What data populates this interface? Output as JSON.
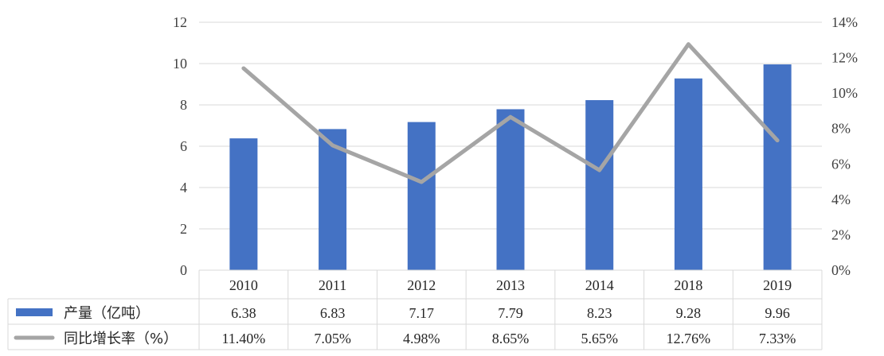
{
  "chart_data": {
    "type": "bar",
    "categories": [
      "2010",
      "2011",
      "2012",
      "2013",
      "2014",
      "2018",
      "2019"
    ],
    "series": [
      {
        "name": "产量（亿吨）",
        "type": "bar",
        "axis": "left",
        "color": "#4472c4",
        "values": [
          6.38,
          6.83,
          7.17,
          7.79,
          8.23,
          9.28,
          9.96
        ],
        "labels": [
          "6.38",
          "6.83",
          "7.17",
          "7.79",
          "8.23",
          "9.28",
          "9.96"
        ]
      },
      {
        "name": "同比增长率（%）",
        "type": "line",
        "axis": "right",
        "color": "#a5a5a5",
        "values": [
          11.4,
          7.05,
          4.98,
          8.65,
          5.65,
          12.76,
          7.33
        ],
        "labels": [
          "11.40%",
          "7.05%",
          "4.98%",
          "8.65%",
          "5.65%",
          "12.76%",
          "7.33%"
        ]
      }
    ],
    "y_left": {
      "range": [
        0,
        12
      ],
      "ticks": [
        "0",
        "2",
        "4",
        "6",
        "8",
        "10",
        "12"
      ]
    },
    "y_right": {
      "range": [
        0,
        14
      ],
      "ticks": [
        "0%",
        "2%",
        "4%",
        "6%",
        "8%",
        "10%",
        "12%",
        "14%"
      ]
    },
    "grid": true,
    "legend": "data-table-left",
    "title": "",
    "xlabel": "",
    "ylabel": ""
  }
}
